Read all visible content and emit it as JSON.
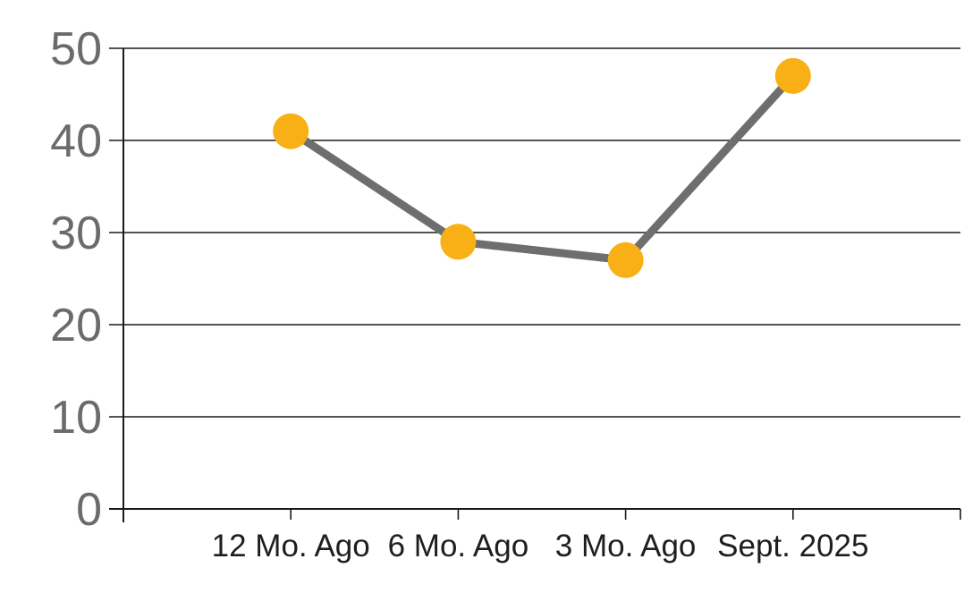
{
  "chart_data": {
    "type": "line",
    "categories": [
      "12 Mo. Ago",
      "6 Mo. Ago",
      "3 Mo. Ago",
      "Sept. 2025"
    ],
    "values": [
      41,
      29,
      27,
      47
    ],
    "title": "",
    "xlabel": "",
    "ylabel": "",
    "ylim": [
      0,
      50
    ],
    "yticks": [
      0,
      10,
      20,
      30,
      40,
      50
    ],
    "grid": true,
    "legend": false,
    "layout": {
      "marker_radius": 20,
      "line_width": 9
    },
    "colors": {
      "marker": "#F9B016",
      "line": "#6E6E6E",
      "grid_axis": "#1A1A1A",
      "y_tick_label": "#6B6B6B",
      "x_tick_label": "#1E1E1E",
      "background": "#FFFFFF"
    }
  }
}
